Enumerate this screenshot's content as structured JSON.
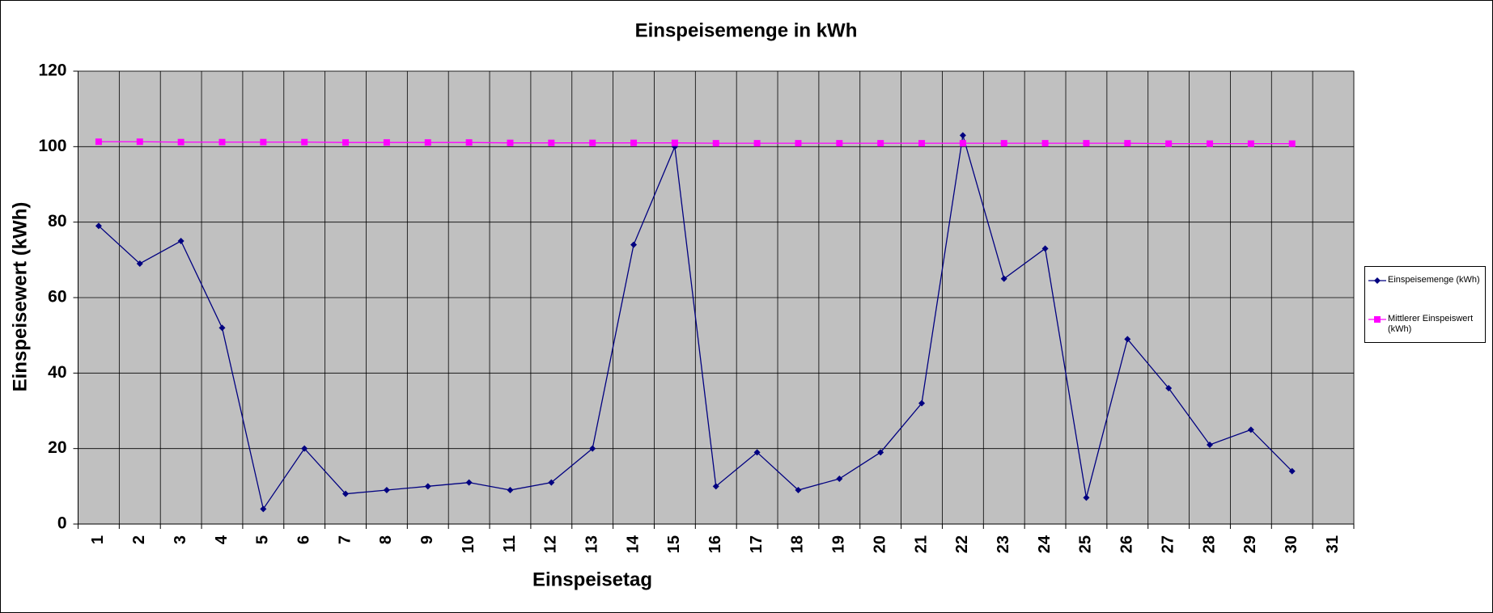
{
  "chart_data": {
    "type": "line",
    "title": "Einspeisemenge in kWh",
    "x_label": "Einspeisetag",
    "y_label": "Einspeisewert  (kWh)",
    "categories": [
      "1",
      "2",
      "3",
      "4",
      "5",
      "6",
      "7",
      "8",
      "9",
      "10",
      "11",
      "12",
      "13",
      "14",
      "15",
      "16",
      "17",
      "18",
      "19",
      "20",
      "21",
      "22",
      "23",
      "24",
      "25",
      "26",
      "27",
      "28",
      "29",
      "30",
      "31"
    ],
    "series": [
      {
        "name": "Einspeisemenge (kWh)",
        "color": "#000080",
        "marker": "diamond",
        "values": [
          79,
          69,
          75,
          52,
          4,
          20,
          8,
          9,
          10,
          11,
          9,
          11,
          20,
          74,
          100,
          10,
          19,
          9,
          12,
          19,
          32,
          103,
          65,
          73,
          7,
          49,
          36,
          21,
          25,
          14,
          null
        ]
      },
      {
        "name": "Mittlerer Einspeiswert (kWh)",
        "color": "#ff00ff",
        "marker": "square",
        "values": [
          101.3,
          101.3,
          101.2,
          101.2,
          101.2,
          101.2,
          101.1,
          101.1,
          101.1,
          101.1,
          101.0,
          101.0,
          101.0,
          101.0,
          101.0,
          100.9,
          100.9,
          100.9,
          100.9,
          100.9,
          100.9,
          100.9,
          100.9,
          100.9,
          100.9,
          100.9,
          100.8,
          100.8,
          100.8,
          100.8,
          null
        ]
      }
    ],
    "ylim": [
      0,
      120
    ],
    "yticks": [
      0,
      20,
      40,
      60,
      80,
      100,
      120
    ],
    "grid": true,
    "plot_background": "#c0c0c0",
    "legend": "right"
  }
}
